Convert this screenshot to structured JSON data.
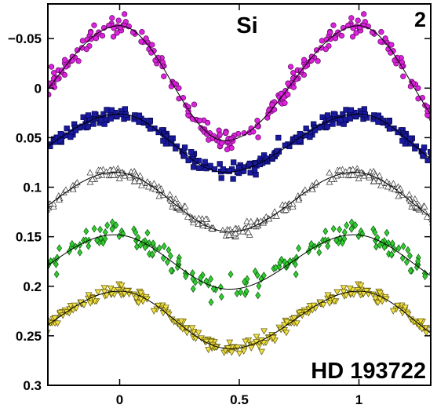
{
  "chart_data": {
    "type": "scatter",
    "title": "",
    "xlabel": "",
    "ylabel": "",
    "xlim": [
      -0.3,
      1.3
    ],
    "ylim": [
      0.3,
      -0.085
    ],
    "y_reversed": true,
    "grid": false,
    "x_ticks": [
      0,
      0.5,
      1
    ],
    "x_tick_labels": [
      "0",
      "0.5",
      "1"
    ],
    "y_ticks": [
      -0.05,
      0,
      0.05,
      0.1,
      0.15,
      0.2,
      0.25,
      0.3
    ],
    "y_tick_labels": [
      "−0.05",
      "0",
      "0.05",
      "0.1",
      "0.15",
      "0.2",
      "0.25",
      "0.3"
    ],
    "annotations": {
      "element": "Si",
      "panel": "2",
      "star": "HD 193722"
    },
    "period": 1,
    "series": [
      {
        "marker": "circle",
        "color": "#dd22dd",
        "edge": "#5a0a5a",
        "min_phase": 0.0,
        "max_phase": 0.44,
        "ymin": -0.063,
        "ymax": 0.053,
        "scatter": 0.0045
      },
      {
        "marker": "square",
        "color": "#1a1aa0",
        "edge": "#06064a",
        "min_phase": 0.0,
        "max_phase": 0.44,
        "ymin": 0.026,
        "ymax": 0.085,
        "scatter": 0.0035
      },
      {
        "marker": "triangle-up",
        "color": "#ffffff",
        "edge": "#333333",
        "min_phase": -0.02,
        "max_phase": 0.46,
        "ymin": 0.085,
        "ymax": 0.145,
        "scatter": 0.003
      },
      {
        "marker": "diamond",
        "color": "#33cc33",
        "edge": "#0b5a0b",
        "min_phase": -0.02,
        "max_phase": 0.46,
        "ymin": 0.148,
        "ymax": 0.203,
        "scatter": 0.006
      },
      {
        "marker": "triangle-down",
        "color": "#f0e040",
        "edge": "#5a5208",
        "min_phase": 0.0,
        "max_phase": 0.46,
        "ymin": 0.205,
        "ymax": 0.263,
        "scatter": 0.0035
      }
    ]
  }
}
